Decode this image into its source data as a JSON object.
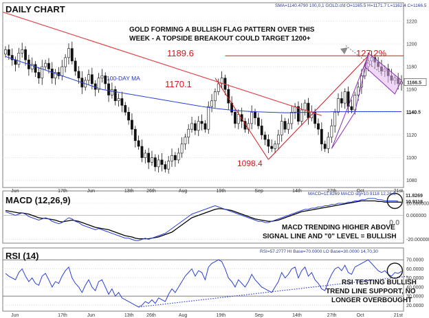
{
  "chart_data": [
    {
      "type": "candlestick",
      "panel": "price",
      "title": "DAILY CHART",
      "header_text": "SMA=1140.4790  100,0,1   GOLD.cfd O=1165.5 H=1171.7 L=1162.4 C=1166.5",
      "annotation": [
        "GOLD FORMING A BULLISH FLAG PATTERN OVER THIS",
        "WEEK - A TOPSIDE BREAKOUT COULD TARGET 1200+"
      ],
      "ma_label": "100-DAY MA",
      "labels": {
        "high1": "1170.1",
        "low1": "1098.4",
        "high2": "1189.6",
        "target": "127.2%"
      },
      "price_tag": "1166.5",
      "ma_tag": "1140.5",
      "ylim": [
        1075,
        1235
      ],
      "y_ticks": [
        1080,
        1100,
        1120,
        1140,
        1160,
        1180,
        1200,
        1220
      ],
      "x_ticks": [
        "Jun",
        "17th",
        "Jun",
        "13th",
        "26th",
        "Aug",
        "19th",
        "Sep",
        "14th",
        "27th",
        "Oct",
        "21st"
      ],
      "close": [
        1195,
        1190,
        1186,
        1182,
        1192,
        1195,
        1186,
        1178,
        1182,
        1175,
        1170,
        1180,
        1183,
        1178,
        1170,
        1175,
        1172,
        1180,
        1188,
        1196,
        1185,
        1176,
        1170,
        1162,
        1168,
        1173,
        1165,
        1160,
        1170,
        1172,
        1165,
        1155,
        1160,
        1150,
        1152,
        1146,
        1140,
        1133,
        1125,
        1115,
        1110,
        1100,
        1104,
        1096,
        1100,
        1092,
        1098,
        1094,
        1090,
        1097,
        1102,
        1098,
        1104,
        1112,
        1118,
        1125,
        1130,
        1124,
        1132,
        1130,
        1125,
        1145,
        1150,
        1158,
        1165,
        1170,
        1160,
        1148,
        1140,
        1130,
        1138,
        1132,
        1125,
        1130,
        1140,
        1135,
        1128,
        1120,
        1116,
        1110,
        1108,
        1112,
        1120,
        1132,
        1125,
        1130,
        1140,
        1145,
        1132,
        1142,
        1148,
        1135,
        1140,
        1130,
        1125,
        1112,
        1108,
        1118,
        1128,
        1140,
        1152,
        1148,
        1158,
        1145,
        1142,
        1155,
        1162,
        1172,
        1180,
        1185,
        1188,
        1184,
        1180,
        1176,
        1178,
        1172,
        1168,
        1170,
        1165,
        1166.5
      ],
      "ma": [
        1189,
        1188,
        1187,
        1186,
        1185,
        1184,
        1183,
        1182,
        1181,
        1180,
        1179,
        1178,
        1177,
        1176,
        1175,
        1174,
        1173,
        1172,
        1171,
        1170,
        1169,
        1168,
        1167,
        1166,
        1165,
        1164,
        1163,
        1162,
        1161,
        1160,
        1159.5,
        1159,
        1158.5,
        1158,
        1157.5,
        1157,
        1156.5,
        1156,
        1155.5,
        1155,
        1154.5,
        1154,
        1153.5,
        1153,
        1152.5,
        1152,
        1151.5,
        1151,
        1150.5,
        1150,
        1149.5,
        1149,
        1148.5,
        1148,
        1147.5,
        1147,
        1146.5,
        1146,
        1145.5,
        1145,
        1144.6,
        1144.2,
        1143.8,
        1143.4,
        1143,
        1142.7,
        1142.4,
        1142.1,
        1141.8,
        1141.5,
        1141.3,
        1141.1,
        1140.9,
        1140.7,
        1140.5,
        1140.4,
        1140.3,
        1140.2,
        1140.1,
        1140.0,
        1139.9,
        1139.8,
        1139.7,
        1139.6,
        1139.5,
        1139.5,
        1139.5,
        1139.6,
        1139.7,
        1139.8,
        1139.9,
        1140.0,
        1140.1,
        1140.2,
        1140.3,
        1140.3,
        1140.3,
        1140.3,
        1140.4,
        1140.4,
        1140.4,
        1140.4,
        1140.4,
        1140.5,
        1140.5,
        1140.5,
        1140.5,
        1140.5,
        1140.5,
        1140.5,
        1140.5,
        1140.5,
        1140.5,
        1140.5,
        1140.5,
        1140.5,
        1140.5,
        1140.5,
        1140.5,
        1140.5
      ]
    },
    {
      "type": "line",
      "panel": "macd",
      "title": "MACD (12,26,9)",
      "header_text": "MACD=11.8269  MACD sig=10.9118   12,26,9",
      "annotation": [
        "MACD TRENDING HIGHER ABOVE",
        "SIGNAL LINE AND \"0\" LEVEL = BULLISH"
      ],
      "zero_tag": "0.0",
      "tags": [
        "11.8269",
        "10.9118"
      ],
      "ylim": [
        -22,
        18
      ],
      "y_ticks": [
        -20,
        0,
        10
      ],
      "macd": [
        3,
        2,
        1,
        0,
        1,
        2,
        1,
        -1,
        -2,
        -3,
        -4,
        -3,
        -2,
        -3,
        -5,
        -6,
        -7,
        -6,
        -4,
        -2,
        -3,
        -5,
        -6,
        -8,
        -9,
        -10,
        -11,
        -12,
        -11,
        -12,
        -13,
        -14,
        -15,
        -16,
        -17,
        -18,
        -19,
        -19,
        -20,
        -21,
        -21,
        -20,
        -19,
        -20,
        -19,
        -18,
        -17,
        -16,
        -15,
        -13,
        -11,
        -9,
        -7,
        -5,
        -3,
        -1,
        1,
        2,
        3,
        4,
        5,
        6,
        7,
        8,
        7,
        6,
        5,
        4,
        3,
        2,
        1,
        0,
        -1,
        -2,
        -3,
        -4,
        -5,
        -5,
        -6,
        -6,
        -5,
        -4,
        -3,
        -2,
        -1,
        0,
        1,
        2,
        3,
        4,
        5,
        5,
        6,
        6,
        7,
        7,
        8,
        8,
        9,
        9,
        10,
        10,
        10,
        11,
        11,
        12,
        12,
        13,
        13,
        14,
        14,
        14,
        13,
        13,
        12,
        12,
        12,
        12,
        11.8
      ],
      "signal": [
        4,
        3.5,
        3,
        2.5,
        2,
        2,
        1.5,
        1,
        0,
        -1,
        -2,
        -2.5,
        -2.5,
        -3,
        -3.5,
        -4,
        -5,
        -5.5,
        -5,
        -4.5,
        -4,
        -4.5,
        -5,
        -6,
        -7,
        -8,
        -9,
        -10,
        -10.5,
        -11,
        -11.5,
        -12,
        -13,
        -14,
        -15,
        -16,
        -17,
        -17.5,
        -18,
        -19,
        -19.5,
        -19.5,
        -19.5,
        -19.5,
        -19,
        -18.5,
        -18,
        -17,
        -16,
        -15,
        -14,
        -12,
        -10,
        -8,
        -6,
        -4,
        -2,
        -1,
        0,
        1,
        2,
        3,
        4,
        5,
        5.5,
        5.5,
        5,
        4.5,
        4,
        3,
        2,
        1,
        0,
        -1,
        -2,
        -3,
        -3.5,
        -4,
        -4.5,
        -5,
        -5,
        -4.5,
        -4,
        -3,
        -2,
        -1,
        0,
        1,
        2,
        3,
        3.5,
        4,
        4.5,
        5,
        5.5,
        6,
        6.5,
        7,
        7.5,
        8,
        8.5,
        9,
        9.5,
        10,
        10.5,
        11,
        11.5,
        12,
        12,
        12,
        12,
        12,
        11.5,
        11.5,
        11,
        11,
        11,
        11,
        11,
        10.9
      ]
    },
    {
      "type": "line",
      "panel": "rsi",
      "title": "RSI (14)",
      "header_text": "RSI=57.2777  HI Base=70.0000  LO Base=30.0000   14,70,30",
      "annotation": [
        "RSI TESTING BULLISH",
        "TREND LINE SUPPORT, NO",
        "LONGER OVERBOUGHT"
      ],
      "ylim": [
        15,
        80
      ],
      "y_ticks": [
        20,
        30,
        40,
        50,
        60,
        70
      ],
      "hi_base": 70,
      "lo_base": 30,
      "rsi": [
        55,
        52,
        50,
        48,
        56,
        60,
        52,
        46,
        50,
        44,
        42,
        52,
        55,
        48,
        40,
        46,
        44,
        52,
        58,
        62,
        50,
        44,
        40,
        34,
        42,
        48,
        40,
        36,
        46,
        48,
        40,
        32,
        38,
        30,
        34,
        28,
        26,
        24,
        22,
        20,
        18,
        20,
        24,
        22,
        26,
        22,
        28,
        26,
        24,
        32,
        38,
        34,
        40,
        46,
        52,
        56,
        60,
        52,
        58,
        56,
        48,
        62,
        66,
        68,
        70,
        68,
        60,
        50,
        46,
        40,
        48,
        44,
        40,
        46,
        54,
        48,
        44,
        40,
        38,
        36,
        34,
        40,
        46,
        56,
        50,
        54,
        60,
        62,
        50,
        58,
        62,
        52,
        56,
        48,
        44,
        38,
        36,
        46,
        54,
        60,
        62,
        58,
        64,
        56,
        54,
        62,
        64,
        66,
        68,
        70,
        66,
        62,
        58,
        56,
        58,
        54,
        52,
        56,
        55,
        57.3
      ]
    }
  ]
}
